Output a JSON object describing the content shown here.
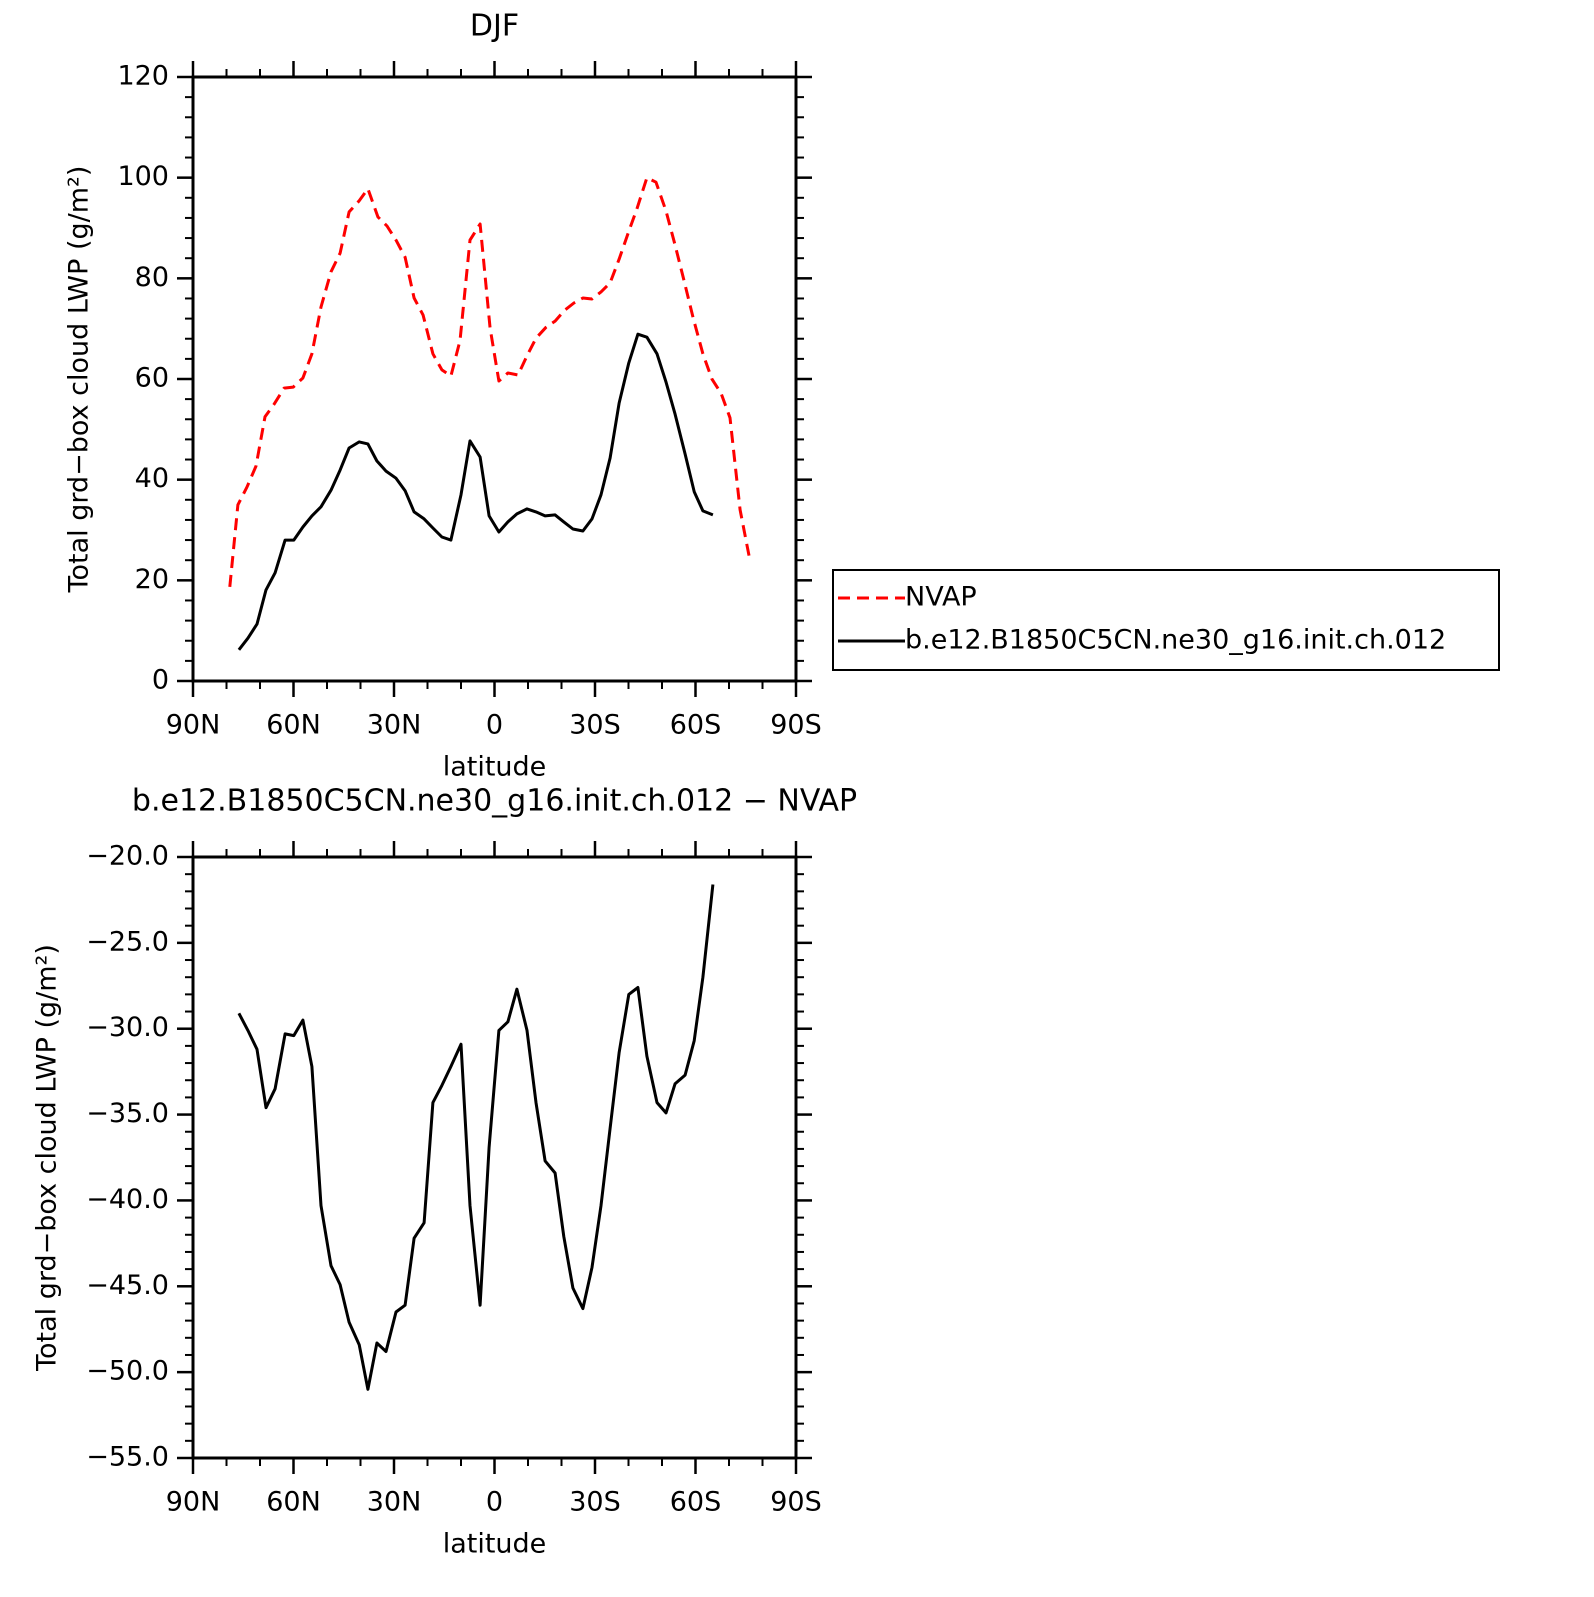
{
  "chart_data": [
    {
      "type": "line",
      "title": "DJF",
      "x_label": "latitude",
      "y_label": "Total grd−box cloud LWP (g/m²)",
      "xlim": [
        90,
        -90
      ],
      "ylim": [
        0,
        120
      ],
      "xticks": [
        {
          "value": 90,
          "label": "90N"
        },
        {
          "value": 60,
          "label": "60N"
        },
        {
          "value": 30,
          "label": "30N"
        },
        0,
        {
          "value": -30,
          "label": "30S"
        },
        {
          "value": -60,
          "label": "60S"
        },
        {
          "value": -90,
          "label": "90S"
        }
      ],
      "yticks": [
        0,
        20,
        40,
        60,
        80,
        100,
        120
      ],
      "legend": "right",
      "series": [
        {
          "name": "NVAP",
          "color": "#ff0000",
          "dash": "dashed",
          "x": [
            79.0,
            76.6,
            73.9,
            71.2,
            68.5,
            65.8,
            62.8,
            60.1,
            57.2,
            54.5,
            51.8,
            48.8,
            46.1,
            43.4,
            40.4,
            37.8,
            34.8,
            32.1,
            29.4,
            26.7,
            24.0,
            21.3,
            18.4,
            15.7,
            13.0,
            10.3,
            7.3,
            4.3,
            1.3,
            -1.3,
            -4.0,
            -7.0,
            -9.7,
            -12.4,
            -15.4,
            -18.1,
            -21.0,
            -23.7,
            -26.4,
            -29.1,
            -31.8,
            -34.5,
            -37.2,
            -39.9,
            -42.5,
            -45.5,
            -48.2,
            -51.2,
            -53.9,
            -56.6,
            -59.3,
            -62.2,
            -64.9,
            -67.6,
            -70.3,
            -73.3,
            -76.3
          ],
          "values": [
            18.7,
            35.0,
            38.5,
            42.7,
            52.5,
            55.0,
            58.2,
            58.4,
            60.2,
            65.0,
            74.3,
            81.3,
            85.0,
            93.2,
            95.4,
            97.8,
            92.2,
            90.4,
            87.6,
            84.2,
            76.1,
            72.7,
            65.0,
            61.8,
            60.6,
            67.6,
            87.6,
            90.8,
            70.1,
            59.6,
            61.2,
            60.8,
            64.6,
            68.1,
            70.3,
            71.5,
            73.7,
            75.1,
            76.1,
            75.9,
            77.3,
            79.1,
            83.8,
            89.0,
            93.8,
            100.0,
            99.1,
            93.4,
            86.6,
            79.5,
            72.1,
            65.0,
            60.0,
            57.2,
            52.3,
            34.0,
            23.8
          ]
        },
        {
          "name": "b.e12.B1850C5CN.ne30_g16.init.ch.012",
          "color": "#000000",
          "dash": "solid",
          "x": [
            76.3,
            73.6,
            70.9,
            68.2,
            65.5,
            62.5,
            59.9,
            57.2,
            54.5,
            51.8,
            48.8,
            46.1,
            43.4,
            40.4,
            37.8,
            35.1,
            32.4,
            29.4,
            26.7,
            24.0,
            21.0,
            18.4,
            15.7,
            13.0,
            10.0,
            7.3,
            4.3,
            1.6,
            -1.3,
            -4.0,
            -6.7,
            -9.7,
            -12.4,
            -15.1,
            -18.1,
            -20.7,
            -23.4,
            -26.4,
            -29.1,
            -31.8,
            -34.5,
            -37.2,
            -40.1,
            -42.8,
            -45.5,
            -48.5,
            -51.2,
            -53.9,
            -56.9,
            -59.6,
            -62.2,
            -65.2
          ],
          "values": [
            6.2,
            8.5,
            11.3,
            18.1,
            21.5,
            28.0,
            28.0,
            30.6,
            32.8,
            34.6,
            37.9,
            41.9,
            46.3,
            47.5,
            47.1,
            43.7,
            41.7,
            40.3,
            37.8,
            33.6,
            32.2,
            30.4,
            28.6,
            28.0,
            37.0,
            47.7,
            44.5,
            32.8,
            29.6,
            31.6,
            33.2,
            34.2,
            33.6,
            32.8,
            33.0,
            31.6,
            30.2,
            29.8,
            32.2,
            37.0,
            44.3,
            55.2,
            63.2,
            68.9,
            68.3,
            65.0,
            59.4,
            53.0,
            45.1,
            37.6,
            33.8,
            33.0
          ]
        }
      ]
    },
    {
      "type": "line",
      "title": "b.e12.B1850C5CN.ne30_g16.init.ch.012 − NVAP",
      "x_label": "latitude",
      "y_label": "Total grd−box cloud LWP (g/m²)",
      "xlim": [
        90,
        -90
      ],
      "ylim": [
        -55,
        -20
      ],
      "xticks": [
        {
          "value": 90,
          "label": "90N"
        },
        {
          "value": 60,
          "label": "60N"
        },
        {
          "value": 30,
          "label": "30N"
        },
        0,
        {
          "value": -30,
          "label": "30S"
        },
        {
          "value": -60,
          "label": "60S"
        },
        {
          "value": -90,
          "label": "90S"
        }
      ],
      "yticks": [
        {
          "value": -55,
          "label": "−55.0"
        },
        {
          "value": -50,
          "label": "−50.0"
        },
        {
          "value": -45,
          "label": "−45.0"
        },
        {
          "value": -40,
          "label": "−40.0"
        },
        {
          "value": -35,
          "label": "−35.0"
        },
        {
          "value": -30,
          "label": "−30.0"
        },
        {
          "value": -25,
          "label": "−25.0"
        },
        {
          "value": -20,
          "label": "−20.0"
        }
      ],
      "series": [
        {
          "color": "#000000",
          "dash": "solid",
          "x": [
            76.3,
            73.6,
            70.9,
            68.2,
            65.5,
            62.5,
            59.9,
            57.2,
            54.5,
            51.8,
            48.8,
            46.1,
            43.4,
            40.4,
            37.8,
            35.1,
            32.4,
            29.4,
            26.7,
            24.0,
            21.0,
            18.4,
            15.7,
            13.0,
            10.0,
            7.3,
            4.3,
            1.6,
            -1.3,
            -4.0,
            -6.7,
            -9.7,
            -12.4,
            -15.1,
            -18.1,
            -20.7,
            -23.4,
            -26.4,
            -29.1,
            -31.8,
            -34.5,
            -37.2,
            -40.1,
            -42.8,
            -45.5,
            -48.5,
            -51.2,
            -53.9,
            -56.9,
            -59.6,
            -62.2,
            -65.2
          ],
          "values": [
            -29.1,
            -30.1,
            -31.2,
            -34.6,
            -33.5,
            -30.3,
            -30.4,
            -29.5,
            -32.2,
            -40.3,
            -43.8,
            -44.9,
            -47.1,
            -48.4,
            -51.0,
            -48.3,
            -48.8,
            -46.5,
            -46.1,
            -42.2,
            -41.3,
            -34.3,
            -33.3,
            -32.2,
            -30.9,
            -40.3,
            -46.1,
            -36.9,
            -30.1,
            -29.6,
            -27.7,
            -30.1,
            -34.3,
            -37.7,
            -38.4,
            -42.1,
            -45.1,
            -46.3,
            -43.9,
            -40.3,
            -35.8,
            -31.4,
            -28.0,
            -27.6,
            -31.6,
            -34.3,
            -34.9,
            -33.2,
            -32.7,
            -30.7,
            -27.0,
            -21.6
          ]
        }
      ]
    }
  ]
}
